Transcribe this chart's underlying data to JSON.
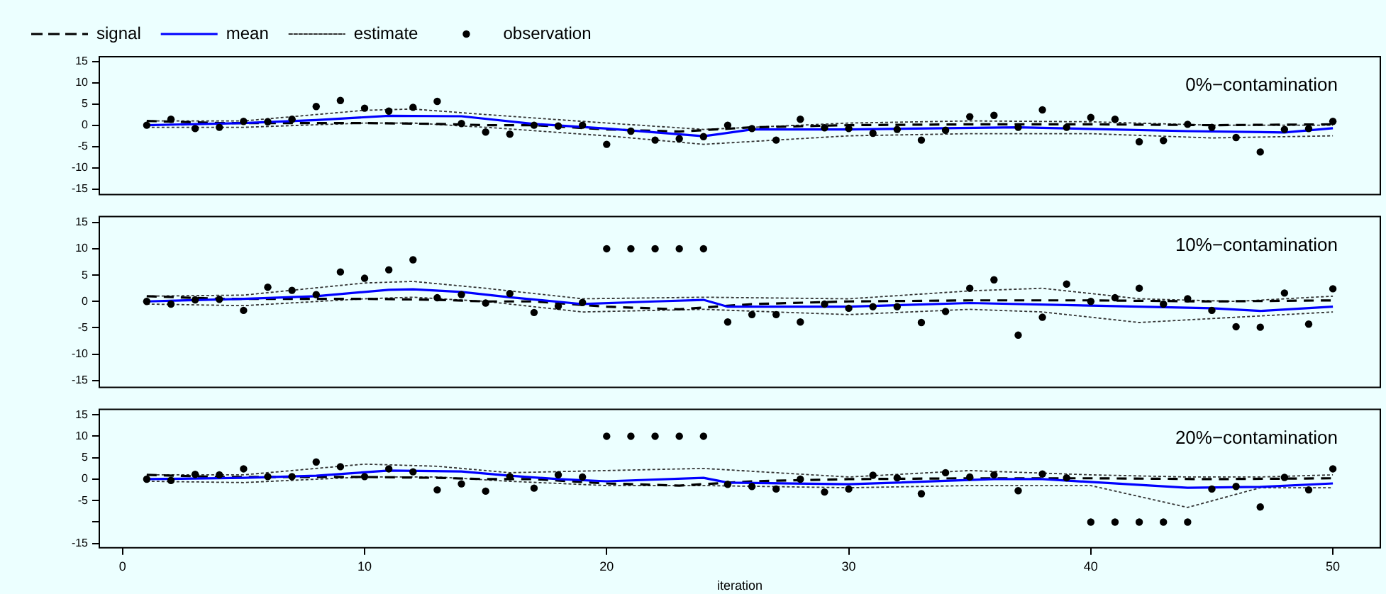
{
  "chart_data": [
    {
      "type": "line",
      "x": [
        1,
        2,
        3,
        4,
        5,
        6,
        7,
        8,
        9,
        10,
        11,
        12,
        13,
        14,
        15,
        16,
        17,
        18,
        19,
        20,
        21,
        22,
        23,
        24,
        25,
        26,
        27,
        28,
        29,
        30,
        31,
        32,
        33,
        34,
        35,
        36,
        37,
        38,
        39,
        40,
        41,
        42,
        43,
        44,
        45,
        46,
        47,
        48,
        49,
        50
      ],
      "xlim": [
        -0.96,
        51.96
      ],
      "ylim": [
        -16.3,
        16.1
      ],
      "yticks": [
        -15,
        -10,
        -5,
        0,
        5,
        10,
        15
      ],
      "tick_labels": "y",
      "legend": "top left",
      "annotations": [
        "0%−contamination"
      ],
      "series": [
        {
          "name": "signal",
          "line_style": "dashed",
          "color": "#000000",
          "x": [
            1,
            4,
            8,
            10,
            13,
            15,
            17,
            20,
            23,
            26,
            30,
            35,
            40,
            45,
            50
          ],
          "values": [
            1,
            0.5,
            0.5,
            0.5,
            0.3,
            0,
            0,
            -1,
            -1.5,
            -0.5,
            0,
            0.2,
            0.2,
            0,
            0.2
          ]
        },
        {
          "name": "mean",
          "line_style": "solid",
          "color": "#0000ff",
          "x": [
            1,
            5,
            8,
            11,
            14,
            17,
            20,
            24,
            26,
            30,
            37,
            44,
            48,
            50
          ],
          "values": [
            0,
            0.5,
            1.2,
            2.2,
            2.1,
            0.3,
            -0.8,
            -2.6,
            -1.0,
            -1.0,
            -0.5,
            -1.4,
            -1.7,
            -0.7
          ]
        },
        {
          "name": "estimate",
          "line_style": "dotted",
          "color": "#333333",
          "x": [
            1,
            5,
            10,
            12,
            15,
            20,
            24,
            30,
            35,
            40,
            45,
            50
          ],
          "values": [
            1,
            1,
            3.5,
            3.8,
            2.5,
            0.5,
            -1,
            0.5,
            1,
            0.8,
            0,
            0
          ]
        },
        {
          "line_style": "dotted",
          "color": "#333333",
          "x": [
            1,
            5,
            10,
            12,
            15,
            20,
            24,
            30,
            35,
            40,
            45,
            50
          ],
          "values": [
            -0.5,
            -0.5,
            0.5,
            0.5,
            -0.5,
            -2.5,
            -4.5,
            -2.5,
            -2,
            -2,
            -3,
            -2.5
          ]
        },
        {
          "name": "observation",
          "type": "scatter",
          "marker": "circle",
          "color": "#000000",
          "values": [
            0,
            1.4,
            -0.8,
            -0.5,
            0.9,
            0.8,
            1.4,
            4.4,
            5.8,
            4.0,
            3.3,
            4.2,
            5.6,
            0.4,
            -1.6,
            -2.1,
            0,
            -0.2,
            0,
            -4.5,
            -1.4,
            -3.5,
            -3.2,
            -2.7,
            0,
            -0.8,
            -3.5,
            1.4,
            -0.6,
            -0.8,
            -1.9,
            -1.0,
            -3.5,
            -1.2,
            2.0,
            2.3,
            -0.5,
            3.6,
            -0.5,
            1.8,
            1.4,
            -3.9,
            -3.6,
            0.2,
            -0.5,
            -2.9,
            -6.3,
            -1.0,
            -0.8,
            0.9
          ]
        }
      ]
    },
    {
      "type": "line",
      "x": [
        1,
        2,
        3,
        4,
        5,
        6,
        7,
        8,
        9,
        10,
        11,
        12,
        13,
        14,
        15,
        16,
        17,
        18,
        19,
        20,
        21,
        22,
        23,
        24,
        25,
        26,
        27,
        28,
        29,
        30,
        31,
        32,
        33,
        34,
        35,
        36,
        37,
        38,
        39,
        40,
        41,
        42,
        43,
        44,
        45,
        46,
        47,
        48,
        49,
        50
      ],
      "xlim": [
        -0.96,
        51.96
      ],
      "ylim": [
        -16.3,
        16.1
      ],
      "yticks": [
        -15,
        -10,
        -5,
        0,
        5,
        10,
        15
      ],
      "tick_labels": "y",
      "annotations": [
        "10%−contamination"
      ],
      "series": [
        {
          "line_style": "dashed",
          "color": "#000000",
          "x": [
            1,
            4,
            8,
            10,
            13,
            15,
            17,
            20,
            23,
            26,
            30,
            35,
            40,
            45,
            50
          ],
          "values": [
            1,
            0.5,
            0.5,
            0.5,
            0.3,
            0,
            0,
            -1,
            -1.5,
            -0.5,
            0,
            0.2,
            0.2,
            0,
            0.2
          ]
        },
        {
          "line_style": "solid",
          "color": "#0000ff",
          "x": [
            1,
            5,
            8,
            11,
            12,
            14,
            16,
            19,
            22,
            24,
            25,
            30,
            35,
            40,
            45,
            47,
            50
          ],
          "values": [
            0,
            0.5,
            1.0,
            2.2,
            2.3,
            1.8,
            0.8,
            -0.5,
            0,
            0.3,
            -1.0,
            -1.0,
            -0.3,
            -0.8,
            -1.3,
            -1.8,
            -1.0
          ]
        },
        {
          "line_style": "dotted",
          "color": "#333333",
          "x": [
            1,
            5,
            10,
            12,
            15,
            19,
            24,
            30,
            35,
            38,
            42,
            46,
            50
          ],
          "values": [
            1,
            1.2,
            3.5,
            3.8,
            2.5,
            0.5,
            0.8,
            0.5,
            2,
            2.5,
            0.5,
            0,
            1
          ]
        },
        {
          "line_style": "dotted",
          "color": "#333333",
          "x": [
            1,
            5,
            10,
            12,
            15,
            19,
            24,
            30,
            35,
            38,
            42,
            46,
            50
          ],
          "values": [
            -0.5,
            -0.8,
            0.5,
            0.8,
            0,
            -2,
            -1.5,
            -2.5,
            -1.5,
            -2,
            -4,
            -3,
            -2
          ]
        },
        {
          "type": "scatter",
          "marker": "circle",
          "color": "#000000",
          "values": [
            0,
            -0.5,
            0.3,
            0.4,
            -1.7,
            2.7,
            2.1,
            1.3,
            5.6,
            4.4,
            6.0,
            7.9,
            0.7,
            1.3,
            -0.3,
            1.5,
            -2.1,
            -0.9,
            -0.2,
            10,
            10,
            10,
            10,
            10,
            -3.9,
            -2.5,
            -2.5,
            -3.9,
            -0.5,
            -1.3,
            -1.0,
            -1.0,
            -4.0,
            -1.9,
            2.5,
            4.1,
            -6.4,
            -3.0,
            3.3,
            0,
            0.7,
            2.5,
            -0.5,
            0.5,
            -1.7,
            -4.8,
            -4.9,
            1.6,
            -4.3,
            2.4
          ]
        }
      ]
    },
    {
      "type": "line",
      "x": [
        1,
        2,
        3,
        4,
        5,
        6,
        7,
        8,
        9,
        10,
        11,
        12,
        13,
        14,
        15,
        16,
        17,
        18,
        19,
        20,
        21,
        22,
        23,
        24,
        25,
        26,
        27,
        28,
        29,
        30,
        31,
        32,
        33,
        34,
        35,
        36,
        37,
        38,
        39,
        40,
        41,
        42,
        43,
        44,
        45,
        46,
        47,
        48,
        49,
        50
      ],
      "xlim": [
        -0.96,
        51.96
      ],
      "xticks": [
        0,
        10,
        20,
        30,
        40,
        50
      ],
      "ylim": [
        -16,
        16.25
      ],
      "yticks": [
        -15,
        {
          "value": -10,
          "label": null
        },
        -5,
        0,
        5,
        10,
        15
      ],
      "xlabel": "iteration",
      "annotations": [
        "20%−contamination"
      ],
      "series": [
        {
          "line_style": "dashed",
          "color": "#000000",
          "x": [
            1,
            4,
            8,
            10,
            13,
            15,
            17,
            20,
            23,
            26,
            30,
            35,
            40,
            45,
            50
          ],
          "values": [
            1,
            0.5,
            0.5,
            0.5,
            0.3,
            0,
            0,
            -1,
            -1.5,
            -0.5,
            0,
            0.2,
            0.2,
            0,
            0.2
          ]
        },
        {
          "line_style": "solid",
          "color": "#0000ff",
          "x": [
            1,
            5,
            8,
            11,
            14,
            16,
            18,
            20,
            24,
            25,
            30,
            36,
            38,
            44,
            47,
            50
          ],
          "values": [
            0,
            0.3,
            0.8,
            2.0,
            1.8,
            0.8,
            0,
            -0.5,
            0.3,
            -0.8,
            -1.2,
            0,
            0,
            -2.0,
            -1.8,
            -1.0
          ]
        },
        {
          "line_style": "dotted",
          "color": "#333333",
          "x": [
            1,
            5,
            10,
            13,
            16,
            20,
            24,
            30,
            35,
            40,
            44,
            47,
            50
          ],
          "values": [
            1,
            1,
            3.5,
            3,
            1.5,
            2,
            2.5,
            0.5,
            2,
            1,
            0.5,
            0.5,
            1
          ]
        },
        {
          "line_style": "dotted",
          "color": "#333333",
          "x": [
            1,
            5,
            10,
            13,
            16,
            20,
            24,
            30,
            35,
            40,
            44,
            47,
            50
          ],
          "values": [
            -0.5,
            -0.8,
            0.5,
            0.5,
            -0.5,
            -1.5,
            -1.5,
            -2,
            -1.5,
            -1.5,
            -6.6,
            -2,
            -2
          ]
        },
        {
          "type": "scatter",
          "marker": "circle",
          "color": "#000000",
          "values": [
            0,
            -0.3,
            1.1,
            1.0,
            2.4,
            0.6,
            0.6,
            4.0,
            2.9,
            0.6,
            2.4,
            1.7,
            -2.5,
            -1.1,
            -2.8,
            0.6,
            -2.1,
            1.0,
            0.5,
            10,
            10,
            10,
            10,
            10,
            -1.2,
            -1.7,
            -2.3,
            0,
            -3.0,
            -2.3,
            0.9,
            0.3,
            -3.4,
            1.5,
            0.5,
            1.0,
            -2.7,
            1.2,
            0.3,
            -10,
            -10,
            -10,
            -10,
            -10,
            -2.3,
            -1.7,
            -6.5,
            0.4,
            -2.5,
            2.4
          ]
        }
      ]
    }
  ]
}
